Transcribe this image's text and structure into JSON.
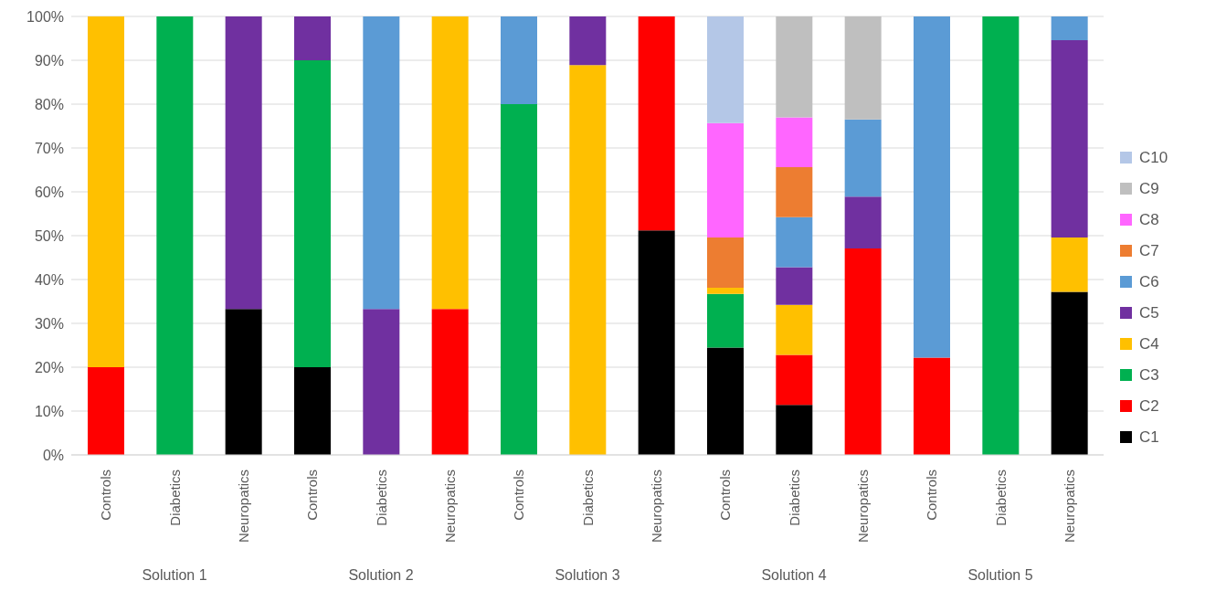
{
  "chart_data": {
    "type": "bar",
    "stacked": true,
    "categories": [
      "Controls",
      "Diabetics",
      "Neuropatics",
      "Controls",
      "Diabetics",
      "Neuropatics",
      "Controls",
      "Diabetics",
      "Neuropatics",
      "Controls",
      "Diabetics",
      "Neuropatics",
      "Controls",
      "Diabetics",
      "Neuropatics"
    ],
    "series": [
      {
        "name": "C1",
        "color": "#000000",
        "values": [
          null,
          null,
          33.3,
          20,
          null,
          null,
          null,
          null,
          51.2,
          24.5,
          11.4,
          null,
          null,
          null,
          37.2
        ]
      },
      {
        "name": "C2",
        "color": "#ff0000",
        "values": [
          20,
          null,
          null,
          null,
          null,
          33.3,
          null,
          null,
          48.8,
          null,
          11.4,
          47.1,
          22.2,
          null,
          null
        ]
      },
      {
        "name": "C3",
        "color": "#00b050",
        "values": [
          null,
          100,
          null,
          70,
          null,
          null,
          80,
          null,
          null,
          12.2,
          null,
          null,
          null,
          100,
          null
        ]
      },
      {
        "name": "C4",
        "color": "#ffc000",
        "values": [
          80,
          null,
          null,
          null,
          null,
          66.7,
          null,
          88.9,
          null,
          1.4,
          11.4,
          null,
          null,
          null,
          12.4
        ]
      },
      {
        "name": "C5",
        "color": "#7030a0",
        "values": [
          null,
          null,
          66.7,
          10,
          33.3,
          null,
          null,
          11.1,
          null,
          null,
          8.6,
          11.8,
          null,
          null,
          45
        ]
      },
      {
        "name": "C6",
        "color": "#5b9bd5",
        "values": [
          null,
          null,
          null,
          null,
          66.7,
          null,
          20,
          null,
          null,
          null,
          11.4,
          17.6,
          77.8,
          null,
          5.4
        ]
      },
      {
        "name": "C7",
        "color": "#ed7d31",
        "values": [
          null,
          null,
          null,
          null,
          null,
          null,
          null,
          null,
          null,
          11.5,
          11.4,
          null,
          null,
          null,
          null
        ]
      },
      {
        "name": "C8",
        "color": "#ff66ff",
        "values": [
          null,
          null,
          null,
          null,
          null,
          null,
          null,
          null,
          null,
          26.1,
          11.4,
          null,
          null,
          null,
          null
        ]
      },
      {
        "name": "C9",
        "color": "#bfbfbf",
        "values": [
          null,
          null,
          null,
          null,
          null,
          null,
          null,
          null,
          null,
          null,
          23,
          23.5,
          null,
          null,
          null
        ]
      },
      {
        "name": "C10",
        "color": "#b4c7e7",
        "values": [
          null,
          null,
          null,
          null,
          null,
          null,
          null,
          null,
          null,
          24.3,
          null,
          null,
          null,
          null,
          null
        ]
      }
    ],
    "ylim": [
      0,
      100
    ],
    "yticks": [
      {
        "value": 0,
        "label": "0%"
      },
      {
        "value": 10,
        "label": "10%"
      },
      {
        "value": 20,
        "label": "20%"
      },
      {
        "value": 30,
        "label": "30%"
      },
      {
        "value": 40,
        "label": "40%"
      },
      {
        "value": 50,
        "label": "50%"
      },
      {
        "value": 60,
        "label": "60%"
      },
      {
        "value": 70,
        "label": "70%"
      },
      {
        "value": 80,
        "label": "80%"
      },
      {
        "value": 90,
        "label": "90%"
      },
      {
        "value": 100,
        "label": "100%"
      }
    ],
    "grid": "y",
    "legend": "right",
    "annotations": [
      "Solution 1",
      "Solution 2",
      "Solution 3",
      "Solution 4",
      "Solution 5"
    ]
  }
}
